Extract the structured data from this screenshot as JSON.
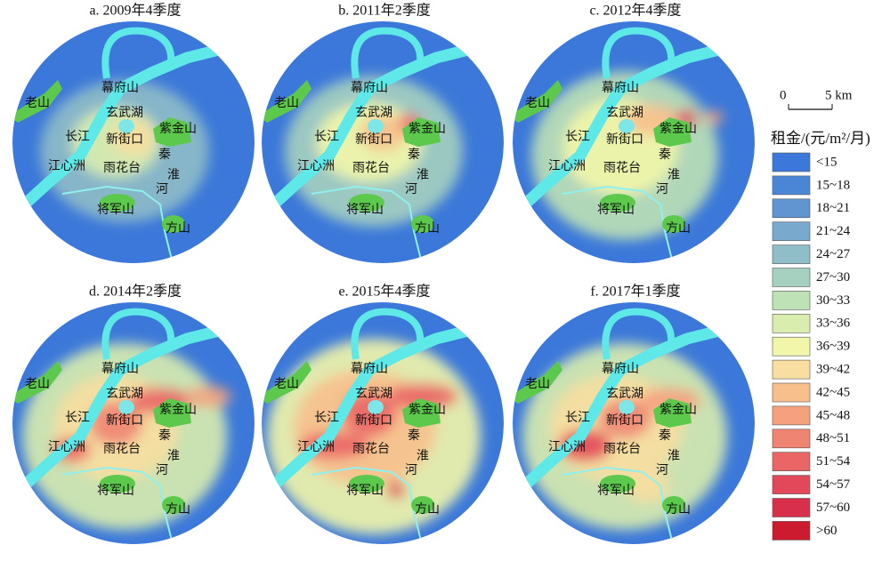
{
  "panels": [
    {
      "title": "a. 2009年4季度"
    },
    {
      "title": "b. 2011年2季度"
    },
    {
      "title": "c. 2012年4季度"
    },
    {
      "title": "d. 2014年2季度"
    },
    {
      "title": "e. 2015年4季度"
    },
    {
      "title": "f. 2017年1季度"
    }
  ],
  "place_names": [
    "老山",
    "幕府山",
    "玄武湖",
    "长江",
    "新街口",
    "紫金山",
    "江心洲",
    "雨花台",
    "秦",
    "淮",
    "河",
    "将军山",
    "方山"
  ],
  "scale_bar": {
    "start": "0",
    "end": "5 km"
  },
  "legend": {
    "title": "租金/(元/m²/月)",
    "items": [
      {
        "label": "<15",
        "color": "#3b78d9"
      },
      {
        "label": "15~18",
        "color": "#4b85d6"
      },
      {
        "label": "18~21",
        "color": "#6095d2"
      },
      {
        "label": "21~24",
        "color": "#7aa9ce"
      },
      {
        "label": "24~27",
        "color": "#8fbdc8"
      },
      {
        "label": "27~30",
        "color": "#a6d0c0"
      },
      {
        "label": "30~33",
        "color": "#bee1b6"
      },
      {
        "label": "33~36",
        "color": "#d9edae"
      },
      {
        "label": "36~39",
        "color": "#f2f6aa"
      },
      {
        "label": "39~42",
        "color": "#f8dea0"
      },
      {
        "label": "42~45",
        "color": "#f7bf8c"
      },
      {
        "label": "45~48",
        "color": "#f5a17e"
      },
      {
        "label": "48~51",
        "color": "#f08473"
      },
      {
        "label": "51~54",
        "color": "#ea6566"
      },
      {
        "label": "54~57",
        "color": "#e2485a"
      },
      {
        "label": "57~60",
        "color": "#d8304c"
      },
      {
        "label": ">60",
        "color": "#cc1a2f"
      }
    ]
  }
}
